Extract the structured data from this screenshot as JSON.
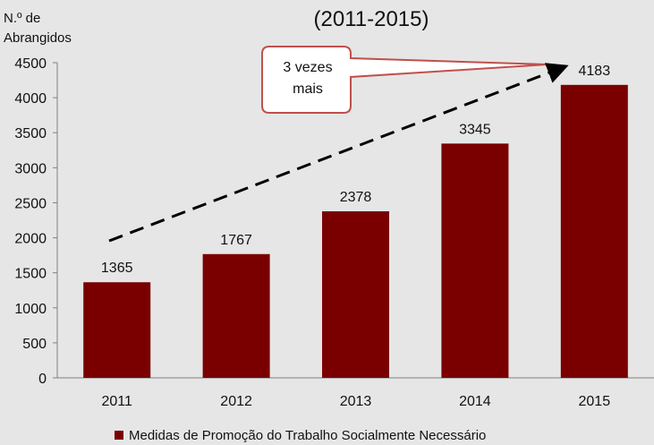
{
  "chart_data": {
    "type": "bar",
    "title": "(2011-2015)",
    "ylabel_line1": "N.º de",
    "ylabel_line2": "Abrangidos",
    "categories": [
      "2011",
      "2012",
      "2013",
      "2014",
      "2015"
    ],
    "series": [
      {
        "name": "Medidas de Promoção do Trabalho Socialmente Necessário",
        "values": [
          1365,
          1767,
          2378,
          3345,
          4183
        ]
      }
    ],
    "ylim": [
      0,
      4500
    ],
    "yticks": [
      0,
      500,
      1000,
      1500,
      2000,
      2500,
      3000,
      3500,
      4000,
      4500
    ],
    "grid": false,
    "legend_position": "bottom",
    "annotation": {
      "line1": "3 vezes",
      "line2": "mais",
      "style": "dashed-arrow-rising"
    }
  },
  "colors": {
    "bar": "#7a0000",
    "background": "#e6e6e6",
    "callout_border": "#c0504d"
  }
}
